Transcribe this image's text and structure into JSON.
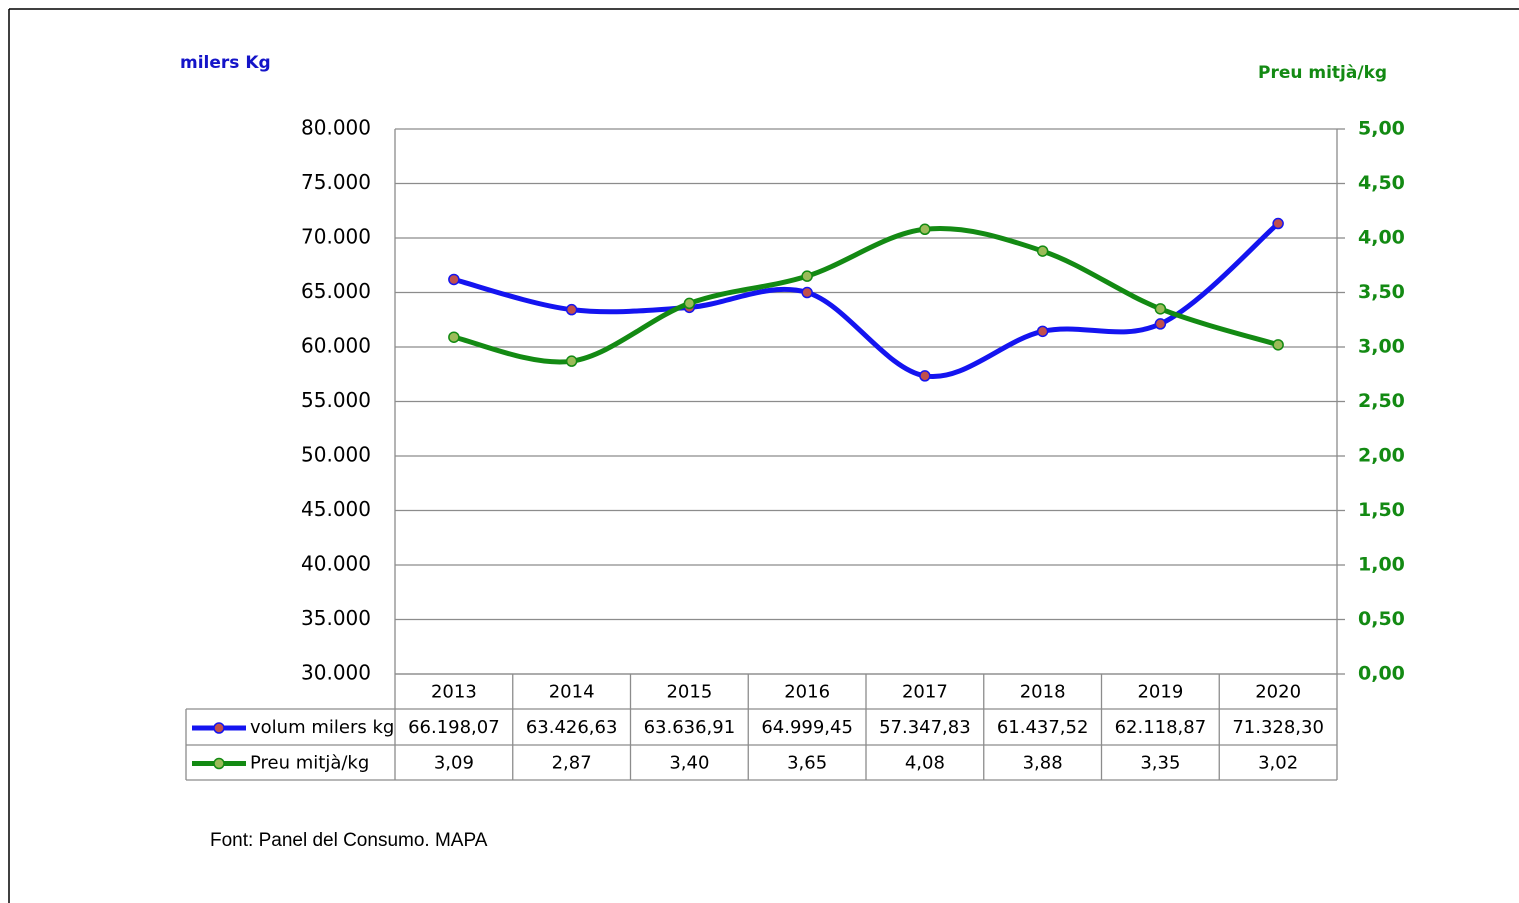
{
  "chart_data": {
    "type": "line",
    "y_label": "milers Kg",
    "y2_label": "Preu mitjà/kg",
    "source": "Font:  Panel del Consumo. MAPA",
    "categories": [
      "2013",
      "2014",
      "2015",
      "2016",
      "2017",
      "2018",
      "2019",
      "2020"
    ],
    "series": [
      {
        "name": "volum milers kg",
        "color": "#1414f0",
        "marker_color": "#c0504d",
        "axis": "y",
        "values": [
          66198.07,
          63426.63,
          63636.91,
          64999.45,
          57347.83,
          61437.52,
          62118.87,
          71328.3
        ],
        "value_labels": [
          "66.198,07",
          "63.426,63",
          "63.636,91",
          "64.999,45",
          "57.347,83",
          "61.437,52",
          "62.118,87",
          "71.328,30"
        ]
      },
      {
        "name": "Preu mitjà/kg",
        "color": "#138a13",
        "marker_color": "#9bbb59",
        "axis": "y2",
        "values": [
          3.09,
          2.87,
          3.4,
          3.65,
          4.08,
          3.88,
          3.35,
          3.02
        ],
        "value_labels": [
          "3,09",
          "2,87",
          "3,40",
          "3,65",
          "4,08",
          "3,88",
          "3,35",
          "3,02"
        ]
      }
    ],
    "ylim": [
      30000,
      80000
    ],
    "yticks": [
      {
        "value": 30000,
        "label": "30.000"
      },
      {
        "value": 35000,
        "label": "35.000"
      },
      {
        "value": 40000,
        "label": "40.000"
      },
      {
        "value": 45000,
        "label": "45.000"
      },
      {
        "value": 50000,
        "label": "50.000"
      },
      {
        "value": 55000,
        "label": "55.000"
      },
      {
        "value": 60000,
        "label": "60.000"
      },
      {
        "value": 65000,
        "label": "65.000"
      },
      {
        "value": 70000,
        "label": "70.000"
      },
      {
        "value": 75000,
        "label": "75.000"
      },
      {
        "value": 80000,
        "label": "80.000"
      }
    ],
    "y2lim": [
      0,
      5
    ],
    "y2ticks": [
      {
        "value": 0,
        "label": "0,00"
      },
      {
        "value": 0.5,
        "label": "0,50"
      },
      {
        "value": 1,
        "label": "1,00"
      },
      {
        "value": 1.5,
        "label": "1,50"
      },
      {
        "value": 2,
        "label": "2,00"
      },
      {
        "value": 2.5,
        "label": "2,50"
      },
      {
        "value": 3,
        "label": "3,00"
      },
      {
        "value": 3.5,
        "label": "3,50"
      },
      {
        "value": 4,
        "label": "4,00"
      },
      {
        "value": 4.5,
        "label": "4,50"
      },
      {
        "value": 5,
        "label": "5,00"
      }
    ],
    "grid": true,
    "smooth": true
  }
}
